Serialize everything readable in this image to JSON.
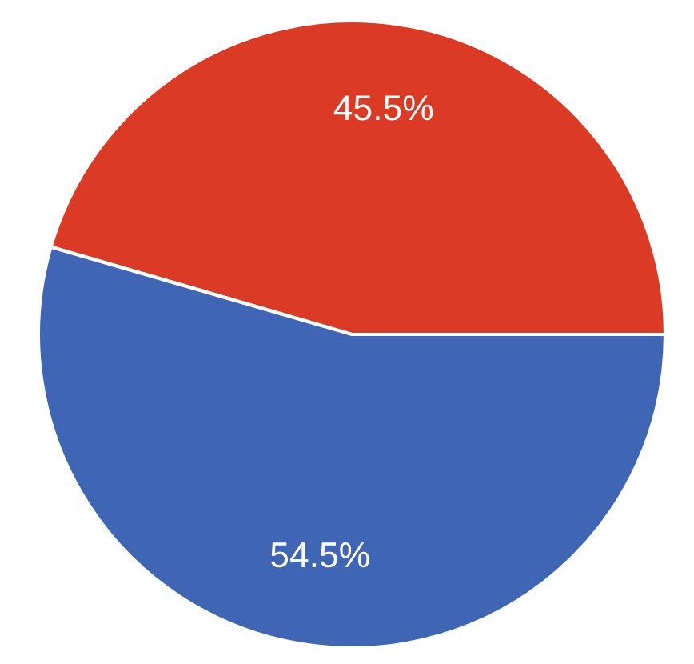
{
  "chart_data": {
    "type": "pie",
    "categories": [
      null,
      null
    ],
    "values": [
      45.5,
      54.5
    ],
    "colors": [
      "#db3a24",
      "#3e66b5"
    ],
    "value_labels": [
      "45.5%",
      "54.5%"
    ]
  }
}
